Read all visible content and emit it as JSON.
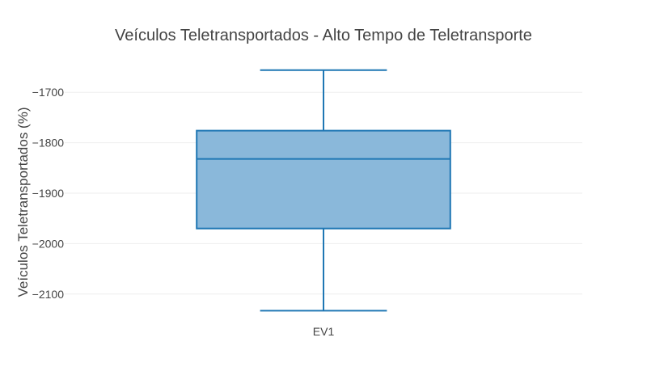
{
  "chart_data": {
    "type": "box",
    "title": "Veículos Teletransportados - Alto Tempo de Teletransporte",
    "xlabel": "",
    "ylabel": "Veículos Teletransportados (%)",
    "categories": [
      "EV1"
    ],
    "ylim": [
      -2150,
      -1650
    ],
    "yticks": [
      -2100,
      -2000,
      -1900,
      -1800,
      -1700
    ],
    "ytick_labels": [
      "−2100",
      "−2000",
      "−1900",
      "−1800",
      "−1700"
    ],
    "grid": true,
    "series": [
      {
        "category": "EV1",
        "min": -2133,
        "q1": -1970,
        "median": -1832,
        "q3": -1776,
        "max": -1656
      }
    ],
    "colors": {
      "box_line": "#1f77b4",
      "box_fill": "#8ab8da",
      "grid": "#eeeeee",
      "text": "#444444"
    }
  }
}
